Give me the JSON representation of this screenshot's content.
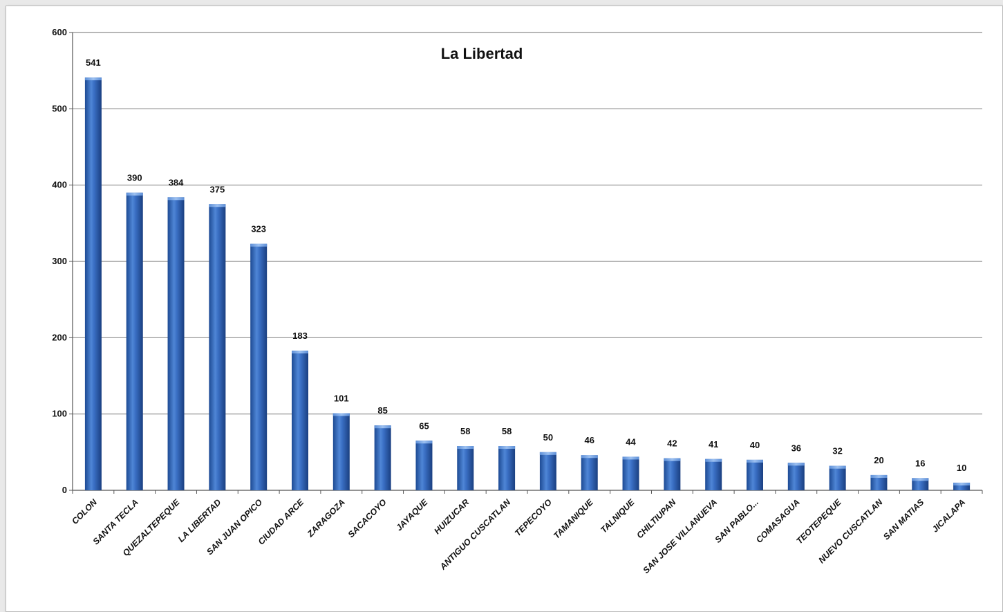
{
  "chart_data": {
    "type": "bar",
    "title": "La Libertad",
    "xlabel": "",
    "ylabel": "",
    "ylim": [
      0,
      600
    ],
    "yticks": [
      0,
      100,
      200,
      300,
      400,
      500,
      600
    ],
    "grid": true,
    "legend": "none",
    "bar_color": "#2f63b8",
    "categories": [
      "COLON",
      "SANTA TECLA",
      "QUEZALTEPEQUE",
      "LA LIBERTAD",
      "SAN JUAN OPICO",
      "CIUDAD ARCE",
      "ZARAGOZA",
      "SACACOYO",
      "JAYAQUE",
      "HUIZUCAR",
      "ANTIGUO CUSCATLAN",
      "TEPECOYO",
      "TAMANIQUE",
      "TALNIQUE",
      "CHILTIUPAN",
      "SAN JOSE VILLANUEVA",
      "SAN PABLO...",
      "COMASAGUA",
      "TEOTEPEQUE",
      "NUEVO CUSCATLAN",
      "SAN MATIAS",
      "JICALAPA"
    ],
    "values": [
      541,
      390,
      384,
      375,
      323,
      183,
      101,
      85,
      65,
      58,
      58,
      50,
      46,
      44,
      42,
      41,
      40,
      36,
      32,
      20,
      16,
      10
    ]
  }
}
